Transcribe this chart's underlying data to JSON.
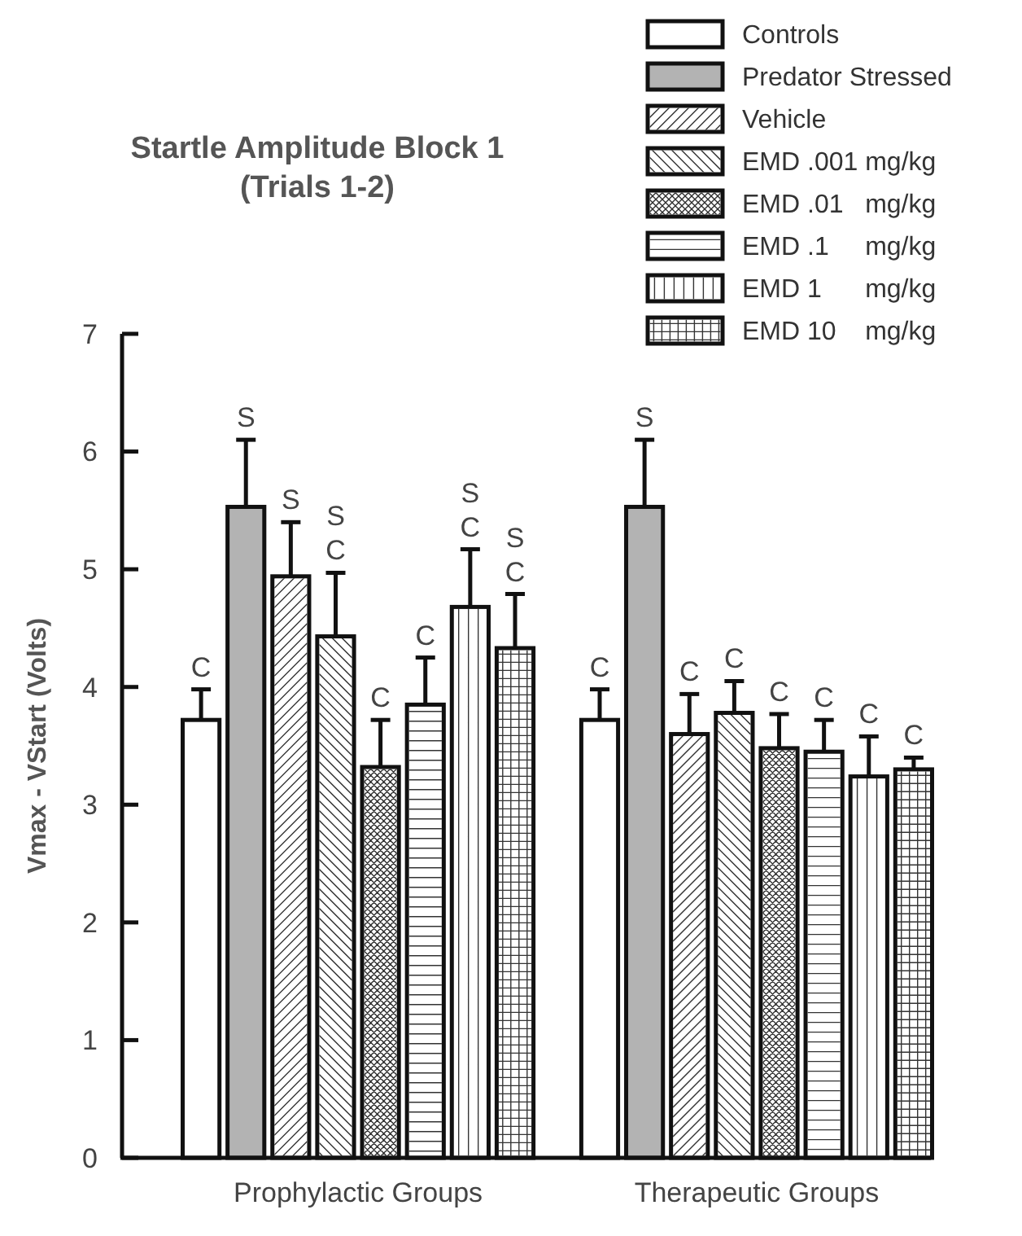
{
  "chart_data": {
    "type": "bar",
    "title": "Startle Amplitude Block 1\n(Trials 1-2)",
    "ylabel": "Vmax - VStart (Volts)",
    "categories": [
      "Prophylactic Groups",
      "Therapeutic Groups"
    ],
    "ylim": [
      0,
      7
    ],
    "yticks": [
      0,
      1,
      2,
      3,
      4,
      5,
      6,
      7
    ],
    "grid": false,
    "legend": "top right",
    "series": [
      {
        "name": "Controls",
        "color": "#ffffff",
        "values": [
          3.72,
          3.72
        ],
        "errors": [
          [
            3.72,
            3.98
          ],
          [
            3.72,
            3.98
          ]
        ],
        "value_labels": [
          "C",
          "C"
        ]
      },
      {
        "name": "Predator Stressed",
        "color": "#b3b3b3",
        "values": [
          5.53,
          5.53
        ],
        "errors": [
          [
            5.53,
            6.1
          ],
          [
            5.53,
            6.1
          ]
        ],
        "value_labels": [
          "S",
          "S"
        ]
      },
      {
        "name": "Vehicle",
        "color": "#ffffff",
        "values": [
          4.94,
          3.6
        ],
        "errors": [
          [
            4.94,
            5.4
          ],
          [
            3.6,
            3.94
          ]
        ],
        "value_labels": [
          "S",
          "C"
        ]
      },
      {
        "name": "EMD .001 mg/kg",
        "color": "#ffffff",
        "values": [
          4.43,
          3.78
        ],
        "errors": [
          [
            4.43,
            4.97
          ],
          [
            3.78,
            4.05
          ]
        ],
        "value_labels": [
          "S C",
          "C"
        ]
      },
      {
        "name": "EMD .01   mg/kg",
        "color": "#ffffff",
        "values": [
          3.32,
          3.48
        ],
        "errors": [
          [
            3.32,
            3.72
          ],
          [
            3.48,
            3.77
          ]
        ],
        "value_labels": [
          "C",
          "C"
        ]
      },
      {
        "name": "EMD .1     mg/kg",
        "color": "#ffffff",
        "values": [
          3.85,
          3.45
        ],
        "errors": [
          [
            3.85,
            4.25
          ],
          [
            3.45,
            3.72
          ]
        ],
        "value_labels": [
          "C",
          "C"
        ]
      },
      {
        "name": "EMD 1      mg/kg",
        "color": "#ffffff",
        "values": [
          4.68,
          3.24
        ],
        "errors": [
          [
            4.68,
            5.17
          ],
          [
            3.24,
            3.58
          ]
        ],
        "value_labels": [
          "S C",
          "C"
        ]
      },
      {
        "name": "EMD 10    mg/kg",
        "color": "#ffffff",
        "values": [
          4.33,
          3.3
        ],
        "errors": [
          [
            4.33,
            4.79
          ],
          [
            3.3,
            3.4
          ]
        ],
        "value_labels": [
          "S C",
          "C"
        ]
      }
    ]
  }
}
